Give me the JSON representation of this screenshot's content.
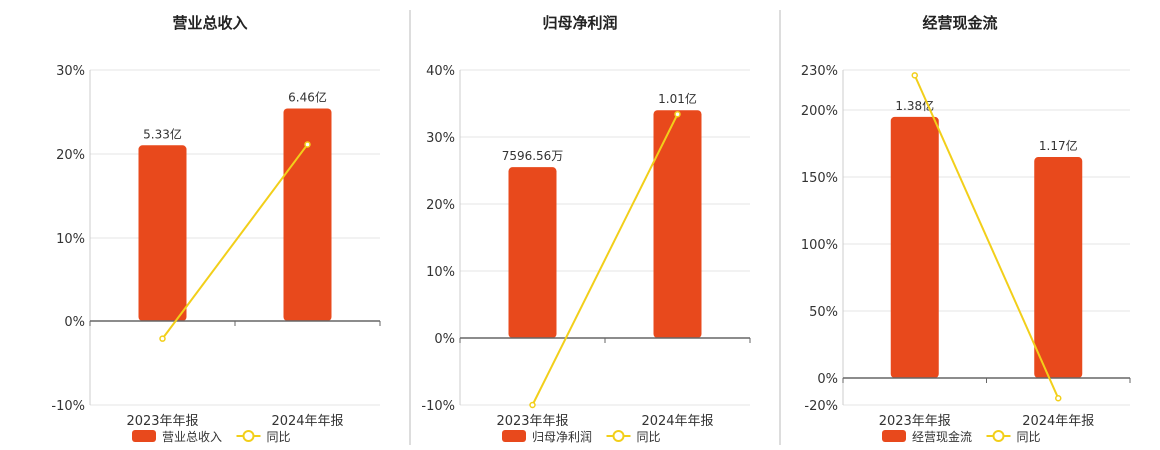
{
  "colors": {
    "bar": "#E8491C",
    "line": "#F2CF1A",
    "divider": "#bbbbbb",
    "grid": "#e6e6e6",
    "axis": "#666666"
  },
  "chart_data": [
    {
      "type": "bar",
      "title": "营业总收入",
      "categories": [
        "2023年年报",
        "2024年年报"
      ],
      "series": [
        {
          "name": "营业总收入",
          "type": "bar",
          "values": [
            21.0,
            25.4
          ],
          "labels": [
            "5.33亿",
            "6.46亿"
          ]
        },
        {
          "name": "同比",
          "type": "line",
          "values": [
            -2.1,
            21.1
          ]
        }
      ],
      "yticks": [
        "30%",
        "20%",
        "10%",
        "0%",
        "-10%"
      ],
      "ylim": [
        -10,
        30
      ],
      "legend": "bottom"
    },
    {
      "type": "bar",
      "title": "归母净利润",
      "categories": [
        "2023年年报",
        "2024年年报"
      ],
      "series": [
        {
          "name": "归母净利润",
          "type": "bar",
          "values": [
            25.5,
            34.0
          ],
          "labels": [
            "7596.56万",
            "1.01亿"
          ]
        },
        {
          "name": "同比",
          "type": "line",
          "values": [
            -10.0,
            33.4
          ]
        }
      ],
      "yticks": [
        "40%",
        "30%",
        "20%",
        "10%",
        "0%",
        "-10%"
      ],
      "ylim": [
        -10,
        40
      ],
      "legend": "bottom"
    },
    {
      "type": "bar",
      "title": "经营现金流",
      "categories": [
        "2023年年报",
        "2024年年报"
      ],
      "series": [
        {
          "name": "经营现金流",
          "type": "bar",
          "values": [
            195,
            165
          ],
          "labels": [
            "1.38亿",
            "1.17亿"
          ]
        },
        {
          "name": "同比",
          "type": "line",
          "values": [
            226,
            -15
          ]
        }
      ],
      "yticks": [
        "230%",
        "200%",
        "150%",
        "100%",
        "50%",
        "0%",
        "-20%"
      ],
      "ylim": [
        -20,
        230
      ],
      "legend": "bottom"
    }
  ]
}
